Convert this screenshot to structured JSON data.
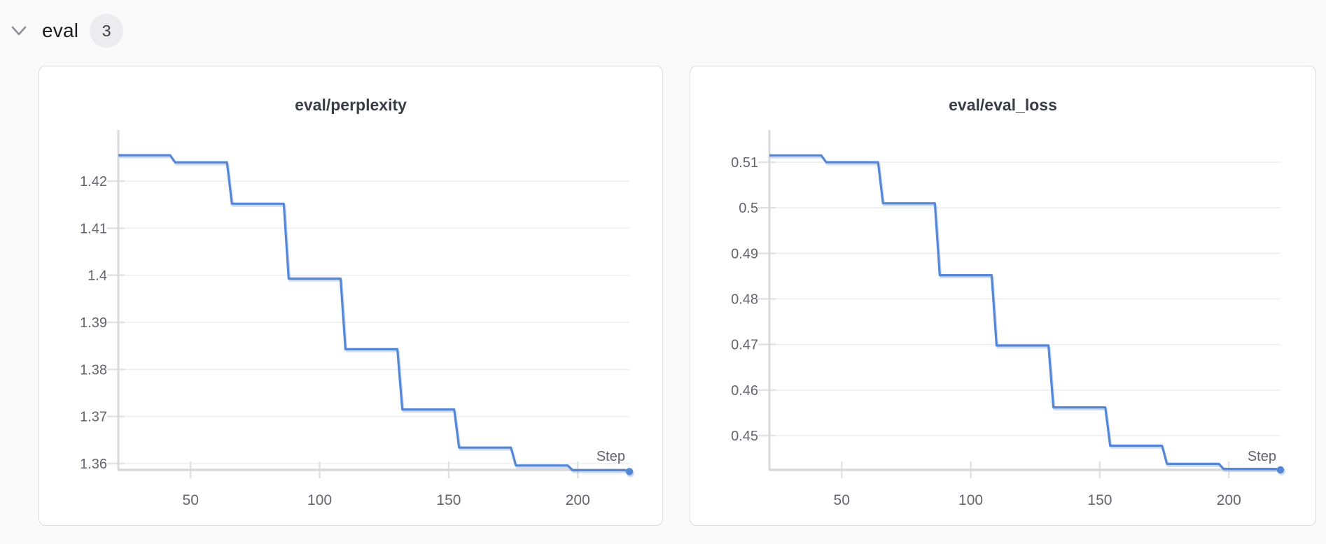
{
  "header": {
    "section_label": "eval",
    "count_badge": "3"
  },
  "colors": {
    "page_bg": "#fafafa",
    "card_bg": "#ffffff",
    "card_border": "#dddde1",
    "title_text": "#3a3d45",
    "tick_text": "#64646f",
    "grid_line": "#ededf0",
    "axis_line": "#d8d8dd",
    "tick_mark": "#e2e2e7",
    "series_line": "#5587d7",
    "series_shadow": "rgba(85,135,215,0.30)",
    "header_text": "#1a1a1f",
    "badge_bg": "#ececee",
    "badge_text": "#3a3a42",
    "chevron": "#8f8f97"
  },
  "chart_data": [
    {
      "type": "line",
      "title": "eval/perplexity",
      "xlabel": "Step",
      "legend": "none",
      "grid": true,
      "interpolation": "step-after",
      "x_ticks": [
        50,
        100,
        150,
        200
      ],
      "y_ticks": [
        1.42,
        1.41,
        1.4,
        1.39,
        1.38,
        1.37,
        1.36
      ],
      "x_min": 22,
      "x_max": 220,
      "x": [
        22,
        44,
        66,
        88,
        110,
        132,
        154,
        176,
        198,
        220
      ],
      "y": [
        1.4255,
        1.424,
        1.4152,
        1.3993,
        1.3843,
        1.3715,
        1.3634,
        1.3596,
        1.3586,
        1.3583
      ],
      "end_marker": true
    },
    {
      "type": "line",
      "title": "eval/eval_loss",
      "xlabel": "Step",
      "legend": "none",
      "grid": true,
      "interpolation": "step-after",
      "x_ticks": [
        50,
        100,
        150,
        200
      ],
      "y_ticks": [
        0.51,
        0.5,
        0.49,
        0.48,
        0.47,
        0.46,
        0.45
      ],
      "x_min": 22,
      "x_max": 220,
      "x": [
        22,
        44,
        66,
        88,
        110,
        132,
        154,
        176,
        198,
        220
      ],
      "y": [
        0.5115,
        0.51,
        0.501,
        0.4852,
        0.4698,
        0.4562,
        0.4478,
        0.4438,
        0.4427,
        0.4425
      ],
      "end_marker": true
    }
  ]
}
